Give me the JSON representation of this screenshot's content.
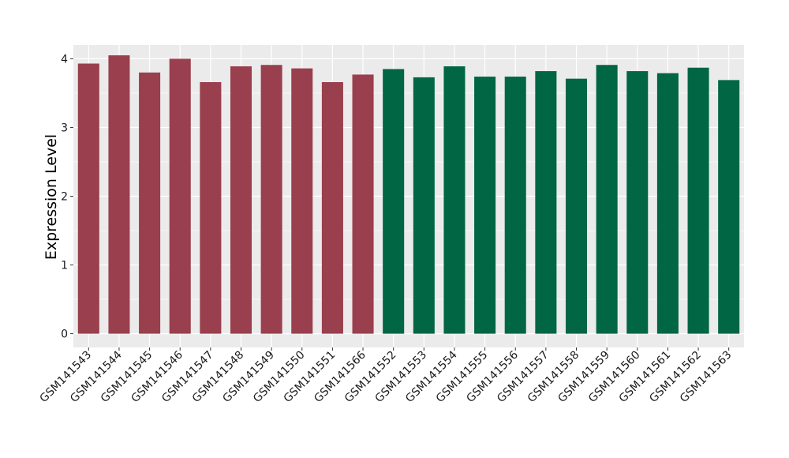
{
  "chart_data": {
    "type": "bar",
    "title": "",
    "xlabel": "",
    "ylabel": "Expression Level",
    "ylim": [
      -0.2,
      4.2
    ],
    "yticks": [
      0,
      1,
      2,
      3,
      4
    ],
    "grid": true,
    "legend": "none",
    "panel_background": "#ebebeb",
    "grid_color": "#ffffff",
    "group_colors": [
      "#9a3f4d",
      "#006644"
    ],
    "categories": [
      "GSM141543",
      "GSM141544",
      "GSM141545",
      "GSM141546",
      "GSM141547",
      "GSM141548",
      "GSM141549",
      "GSM141550",
      "GSM141551",
      "GSM141566",
      "GSM141552",
      "GSM141553",
      "GSM141554",
      "GSM141555",
      "GSM141556",
      "GSM141557",
      "GSM141558",
      "GSM141559",
      "GSM141560",
      "GSM141561",
      "GSM141562",
      "GSM141563"
    ],
    "values": [
      3.93,
      4.05,
      3.8,
      4.0,
      3.66,
      3.89,
      3.91,
      3.86,
      3.66,
      3.77,
      3.85,
      3.73,
      3.89,
      3.74,
      3.74,
      3.82,
      3.71,
      3.91,
      3.82,
      3.79,
      3.87,
      3.69
    ],
    "groups": [
      0,
      0,
      0,
      0,
      0,
      0,
      0,
      0,
      0,
      0,
      1,
      1,
      1,
      1,
      1,
      1,
      1,
      1,
      1,
      1,
      1,
      1
    ]
  }
}
